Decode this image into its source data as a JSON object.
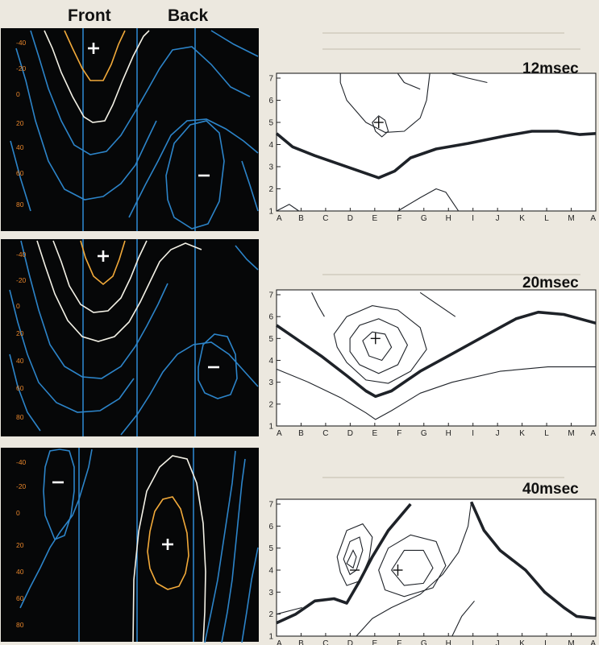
{
  "headers": {
    "front": "Front",
    "back": "Back"
  },
  "left_scale_labels": [
    "-40",
    "-20",
    "0",
    "20",
    "40",
    "60",
    "80"
  ],
  "right_axis": {
    "y_ticks": [
      "1",
      "2",
      "3",
      "4",
      "5",
      "6",
      "7"
    ],
    "x_ticks": [
      "A",
      "B",
      "C",
      "D",
      "E",
      "F",
      "G",
      "H",
      "I",
      "J",
      "K",
      "L",
      "M",
      "A"
    ]
  },
  "panels": [
    {
      "title": "12msec",
      "left_signs": {
        "plus": "+",
        "minus": "−"
      },
      "right_signs": [
        "+"
      ]
    },
    {
      "title": "20msec",
      "left_signs": {
        "plus": "+",
        "minus": "−"
      },
      "right_signs": [
        "+"
      ]
    },
    {
      "title": "40msec",
      "left_signs": {
        "plus": "+",
        "minus": "−"
      },
      "right_signs": [
        "−",
        "+"
      ]
    }
  ],
  "colors": {
    "panel_bg": "#060708",
    "blue": "#2c84c9",
    "white": "#f3f1e6",
    "orange": "#f2aa3a",
    "label": "#e6852b",
    "page": "#ece8df"
  }
}
